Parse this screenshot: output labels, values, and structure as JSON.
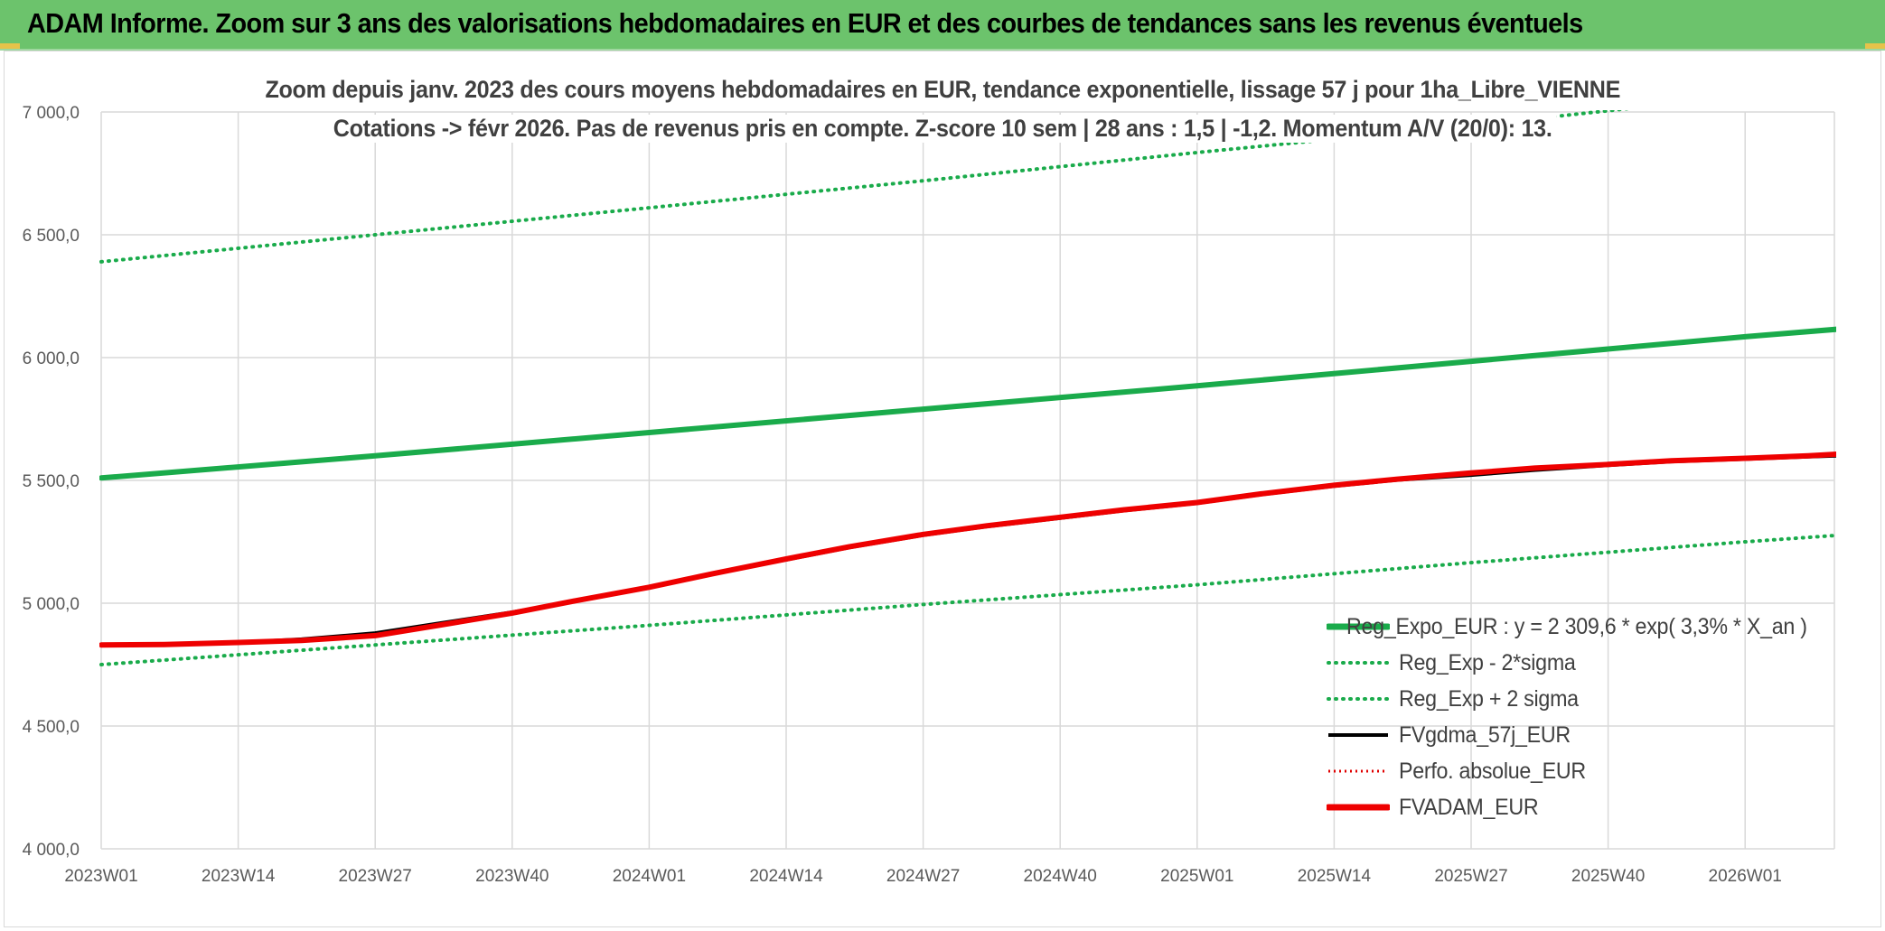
{
  "header": {
    "title": "ADAM Informe. Zoom sur 3 ans des valorisations hebdomadaires en EUR et des courbes de tendances sans les revenus éventuels"
  },
  "colors": {
    "header_bg": "#6cc36c",
    "reg_expo": "#1aab4b",
    "bands": "#1aab4b",
    "fvgdma": "#000000",
    "perfo": "#e00000",
    "fvadam": "#ee0000",
    "grid": "#d9d9d9"
  },
  "chart_data": {
    "type": "line",
    "title_line1": "Zoom depuis janv. 2023 des cours moyens hebdomadaires en EUR, tendance exponentielle, lissage 57 j pour 1ha_Libre_VIENNE",
    "title_line2": "Cotations -> févr 2026. Pas de revenus pris en compte. Z-score 10 sem | 28 ans : 1,5 | -1,2. Momentum A/V (20/0): 13.",
    "ylim": [
      4000,
      7000
    ],
    "yticks": [
      "4 000,0",
      "4 500,0",
      "5 000,0",
      "5 500,0",
      "6 000,0",
      "6 500,0",
      "7 000,0"
    ],
    "ytick_values": [
      4000,
      4500,
      5000,
      5500,
      6000,
      6500,
      7000
    ],
    "x_categories": [
      "2023W01",
      "2023W14",
      "2023W27",
      "2023W40",
      "2024W01",
      "2024W14",
      "2024W27",
      "2024W40",
      "2025W01",
      "2025W14",
      "2025W27",
      "2025W40",
      "2026W01"
    ],
    "x_range_weeks": [
      0,
      166
    ],
    "grid": true,
    "legend_position": "bottom-right",
    "series": [
      {
        "name": "Reg_Expo_EUR : y = 2 309,6 * exp( 3,3% *  X_an )",
        "style": "solid-thick",
        "x": [
          0,
          26,
          52,
          78,
          104,
          130,
          156,
          166
        ],
        "y": [
          5510,
          5600,
          5695,
          5790,
          5885,
          5985,
          6085,
          6120
        ]
      },
      {
        "name": "Reg_Exp - 2*sigma",
        "style": "dotted",
        "x": [
          0,
          26,
          52,
          78,
          104,
          130,
          156,
          166
        ],
        "y": [
          4750,
          4830,
          4910,
          4995,
          5075,
          5165,
          5250,
          5280
        ]
      },
      {
        "name": "Reg_Exp + 2 sigma",
        "style": "dotted",
        "x": [
          0,
          26,
          52,
          78,
          104,
          130,
          156,
          166
        ],
        "y": [
          6390,
          6500,
          6610,
          6720,
          6835,
          6945,
          7065,
          7100
        ]
      },
      {
        "name": "FVgdma_57j_EUR",
        "style": "solid-thin",
        "x": [
          0,
          6,
          13,
          19,
          26,
          32,
          39,
          45,
          52,
          58,
          65,
          71,
          78,
          84,
          91,
          97,
          104,
          110,
          117,
          123,
          130,
          136,
          143,
          149,
          156,
          162,
          166
        ],
        "y": [
          4830,
          4832,
          4842,
          4855,
          4880,
          4920,
          4965,
          5010,
          5065,
          5120,
          5175,
          5225,
          5275,
          5310,
          5345,
          5375,
          5405,
          5440,
          5475,
          5500,
          5520,
          5540,
          5560,
          5575,
          5585,
          5595,
          5600
        ]
      },
      {
        "name": "Perfo. absolue_EUR",
        "style": "dotted-red",
        "x": [
          0,
          6,
          13,
          19,
          26,
          32,
          39,
          45,
          52,
          58,
          65,
          71,
          78,
          84,
          91,
          97,
          104,
          110,
          117,
          123,
          130,
          136,
          143,
          149,
          156,
          162,
          166
        ],
        "y": [
          4830,
          4832,
          4840,
          4848,
          4868,
          4910,
          4960,
          5010,
          5065,
          5120,
          5180,
          5230,
          5280,
          5315,
          5350,
          5380,
          5410,
          5445,
          5480,
          5505,
          5530,
          5550,
          5565,
          5580,
          5590,
          5600,
          5610
        ]
      },
      {
        "name": "FVADAM_EUR",
        "style": "solid-thick-red",
        "x": [
          0,
          6,
          13,
          19,
          26,
          32,
          39,
          45,
          52,
          58,
          65,
          71,
          78,
          84,
          91,
          97,
          104,
          110,
          117,
          123,
          130,
          136,
          143,
          149,
          156,
          162,
          166
        ],
        "y": [
          4830,
          4832,
          4840,
          4848,
          4868,
          4910,
          4960,
          5010,
          5065,
          5120,
          5180,
          5230,
          5280,
          5315,
          5350,
          5380,
          5410,
          5445,
          5480,
          5505,
          5530,
          5550,
          5565,
          5580,
          5590,
          5600,
          5610
        ]
      }
    ]
  }
}
